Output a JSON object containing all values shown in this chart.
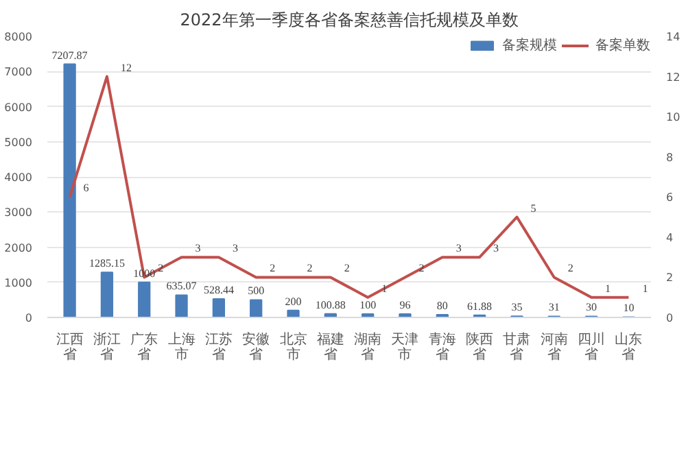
{
  "chart_data": {
    "type": "bar",
    "title": "2022年第一季度各省备案慈善信托规模及单数",
    "categories": [
      "江西省",
      "浙江省",
      "广东省",
      "上海市",
      "江苏省",
      "安徽省",
      "北京市",
      "福建省",
      "湖南省",
      "天津市",
      "青海省",
      "陕西省",
      "甘肃省",
      "河南省",
      "四川省",
      "山东省"
    ],
    "series": [
      {
        "name": "备案规模",
        "color": "#4a7ebb",
        "values": [
          7207.87,
          1285.15,
          1000,
          635.07,
          528.44,
          500,
          200,
          100.88,
          100,
          96,
          80,
          61.88,
          35,
          31,
          30,
          10
        ]
      },
      {
        "name": "备案单数",
        "type": "line",
        "axis": "y2",
        "color": "#c0504d",
        "values": [
          6,
          12,
          2,
          3,
          3,
          2,
          2,
          2,
          1,
          2,
          3,
          3,
          5,
          2,
          1,
          1
        ]
      }
    ],
    "ylim": [
      0,
      8000
    ],
    "yticks": [
      0,
      1000,
      2000,
      3000,
      4000,
      5000,
      6000,
      7000,
      8000
    ],
    "y2lim": [
      0,
      14
    ],
    "y2ticks": [
      0,
      2,
      4,
      6,
      8,
      10,
      12,
      14
    ],
    "data_labels": true,
    "grid": "y",
    "legend": "top right",
    "marker": "none",
    "line_style": "solid"
  }
}
